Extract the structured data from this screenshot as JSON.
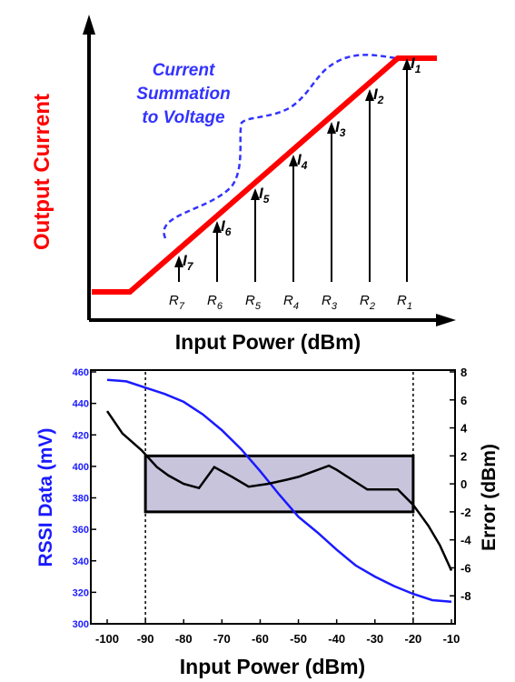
{
  "colors": {
    "output_line": "#ff0000",
    "summation_curve": "#3333ff",
    "summation_text": "#3333ff",
    "rssi_axis": "#1a1aff",
    "rssi_line": "#1a1aff",
    "error_line": "#000000",
    "error_window_fill": "#c8c4dc",
    "axis": "#000000"
  },
  "chart_data": [
    {
      "type": "line",
      "title": "",
      "xlabel": "Input Power (dBm)",
      "ylabel": "Output Current",
      "annotation": [
        "Current",
        "Summation",
        "to Voltage"
      ],
      "stages": [
        {
          "current": "I",
          "current_sub": "1",
          "resistor": "R",
          "resistor_sub": "1"
        },
        {
          "current": "I",
          "current_sub": "2",
          "resistor": "R",
          "resistor_sub": "2"
        },
        {
          "current": "I",
          "current_sub": "3",
          "resistor": "R",
          "resistor_sub": "3"
        },
        {
          "current": "I",
          "current_sub": "4",
          "resistor": "R",
          "resistor_sub": "4"
        },
        {
          "current": "I",
          "current_sub": "5",
          "resistor": "R",
          "resistor_sub": "5"
        },
        {
          "current": "I",
          "current_sub": "6",
          "resistor": "R",
          "resistor_sub": "6"
        },
        {
          "current": "I",
          "current_sub": "7",
          "resistor": "R",
          "resistor_sub": "7"
        }
      ]
    },
    {
      "type": "line",
      "title": "",
      "xlabel": "Input Power (dBm)",
      "ylabel": "RSSI Data (mV)",
      "y2label": "Error (dBm)",
      "xlim": [
        -100,
        -10
      ],
      "ylim": [
        300,
        460
      ],
      "y2lim": [
        -10,
        8
      ],
      "xticks": [
        -100,
        -90,
        -80,
        -70,
        -60,
        -50,
        -40,
        -30,
        -20,
        -10
      ],
      "yticks": [
        300,
        320,
        340,
        360,
        380,
        400,
        420,
        440,
        460
      ],
      "y2ticks": [
        -8,
        -6,
        -4,
        -2,
        0,
        2,
        4,
        6,
        8
      ],
      "vlines": [
        -90,
        -20
      ],
      "error_window": {
        "x": [
          -90,
          -20
        ],
        "y2": [
          -2,
          2
        ]
      },
      "series": [
        {
          "axis": "left",
          "x": [
            -100,
            -95,
            -90,
            -85,
            -80,
            -75,
            -70,
            -65,
            -60,
            -55,
            -50,
            -45,
            -40,
            -35,
            -30,
            -25,
            -20,
            -15,
            -10
          ],
          "values": [
            455,
            454,
            450,
            446,
            441,
            433,
            423,
            411,
            397,
            382,
            368,
            358,
            347,
            337,
            330,
            324,
            319,
            315,
            314
          ]
        },
        {
          "axis": "right",
          "x": [
            -100,
            -96,
            -91,
            -87,
            -84,
            -80,
            -76,
            -72,
            -68,
            -63,
            -58,
            -53,
            -50,
            -46,
            -42,
            -40,
            -36,
            -32,
            -28,
            -24,
            -20,
            -16,
            -13,
            -10
          ],
          "values": [
            5.2,
            3.6,
            2.4,
            1.2,
            0.6,
            0.0,
            -0.3,
            1.2,
            0.6,
            -0.2,
            0.0,
            0.3,
            0.5,
            0.9,
            1.3,
            1.0,
            0.3,
            -0.4,
            -0.4,
            -0.4,
            -1.5,
            -3.0,
            -4.4,
            -6.2
          ]
        }
      ]
    }
  ]
}
